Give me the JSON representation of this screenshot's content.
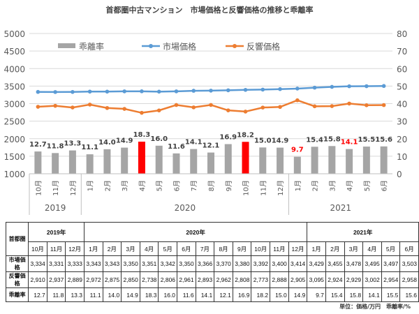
{
  "title": "首都圏中古マンション　市場価格と反響価格の推移と乖離率",
  "chart_data": {
    "type": "bar+line",
    "title": "首都圏中古マンション　市場価格と反響価格の推移と乖離率",
    "categories": [
      "10月",
      "11月",
      "12月",
      "1月",
      "2月",
      "3月",
      "4月",
      "5月",
      "6月",
      "7月",
      "8月",
      "9月",
      "10月",
      "11月",
      "12月",
      "1月",
      "2月",
      "3月",
      "4月",
      "5月",
      "6月"
    ],
    "year_groups": [
      {
        "label": "2019",
        "count": 3
      },
      {
        "label": "2020",
        "count": 12
      },
      {
        "label": "2021",
        "count": 6
      }
    ],
    "left_axis": {
      "ylim": [
        1000,
        5000
      ],
      "ticks": [
        1000,
        1500,
        2000,
        2500,
        3000,
        3500,
        4000,
        4500,
        5000
      ]
    },
    "right_axis": {
      "ylim": [
        0,
        80
      ],
      "ticks": [
        0,
        10,
        20,
        30,
        40,
        50,
        60,
        70,
        80
      ]
    },
    "grid": true,
    "legend_position": "top",
    "series": [
      {
        "name": "乖離率",
        "type": "bar",
        "axis": "right",
        "color": "#a5a5a5",
        "highlight_color": "#ff0000",
        "highlight_indices": [
          6,
          12
        ],
        "red_label_indices": [
          15,
          18
        ],
        "values": [
          12.7,
          11.8,
          13.3,
          11.1,
          14.0,
          14.9,
          18.3,
          16.0,
          11.6,
          14.1,
          12.1,
          16.9,
          18.2,
          15.0,
          14.9,
          9.7,
          15.4,
          15.8,
          14.1,
          15.5,
          15.6
        ]
      },
      {
        "name": "市場価格",
        "type": "line",
        "axis": "left",
        "color": "#5b9bd5",
        "values": [
          3334,
          3331,
          3333,
          3343,
          3343,
          3350,
          3351,
          3342,
          3350,
          3366,
          3370,
          3380,
          3392,
          3400,
          3414,
          3429,
          3455,
          3478,
          3495,
          3497,
          3503
        ]
      },
      {
        "name": "反響価格",
        "type": "line",
        "axis": "left",
        "color": "#ed7d31",
        "values": [
          2910,
          2937,
          2889,
          2972,
          2875,
          2850,
          2738,
          2806,
          2961,
          2893,
          2962,
          2808,
          2773,
          2888,
          2905,
          3095,
          2924,
          2929,
          3002,
          2954,
          2958
        ]
      }
    ]
  },
  "table": {
    "corner": "首都圏",
    "years": [
      {
        "label": "2019年",
        "span": 3
      },
      {
        "label": "2020年",
        "span": 12
      },
      {
        "label": "2021年",
        "span": 6
      }
    ],
    "months": [
      "10月",
      "11月",
      "12月",
      "1月",
      "2月",
      "3月",
      "4月",
      "5月",
      "6月",
      "7月",
      "8月",
      "9月",
      "10月",
      "11月",
      "12月",
      "1月",
      "2月",
      "3月",
      "4月",
      "5月",
      "6月"
    ],
    "rows": [
      {
        "label": "市場価格",
        "values": [
          "3,334",
          "3,331",
          "3,333",
          "3,343",
          "3,343",
          "3,350",
          "3,351",
          "3,342",
          "3,350",
          "3,366",
          "3,370",
          "3,380",
          "3,392",
          "3,400",
          "3,414",
          "3,429",
          "3,455",
          "3,478",
          "3,495",
          "3,497",
          "3,503"
        ]
      },
      {
        "label": "反響価格",
        "values": [
          "2,910",
          "2,937",
          "2,889",
          "2,972",
          "2,875",
          "2,850",
          "2,738",
          "2,806",
          "2,961",
          "2,893",
          "2,962",
          "2,808",
          "2,773",
          "2,888",
          "2,905",
          "3,095",
          "2,924",
          "2,929",
          "3,002",
          "2,954",
          "2,958"
        ]
      },
      {
        "label": "乖離率",
        "values": [
          "12.7",
          "11.8",
          "13.3",
          "11.1",
          "14.0",
          "14.9",
          "18.3",
          "16.0",
          "11.6",
          "14.1",
          "12.1",
          "16.9",
          "18.2",
          "15.0",
          "14.9",
          "9.7",
          "15.4",
          "15.8",
          "14.1",
          "15.5",
          "15.6"
        ]
      }
    ]
  },
  "unit_note": "単位：価格/万円　乖離率/%"
}
